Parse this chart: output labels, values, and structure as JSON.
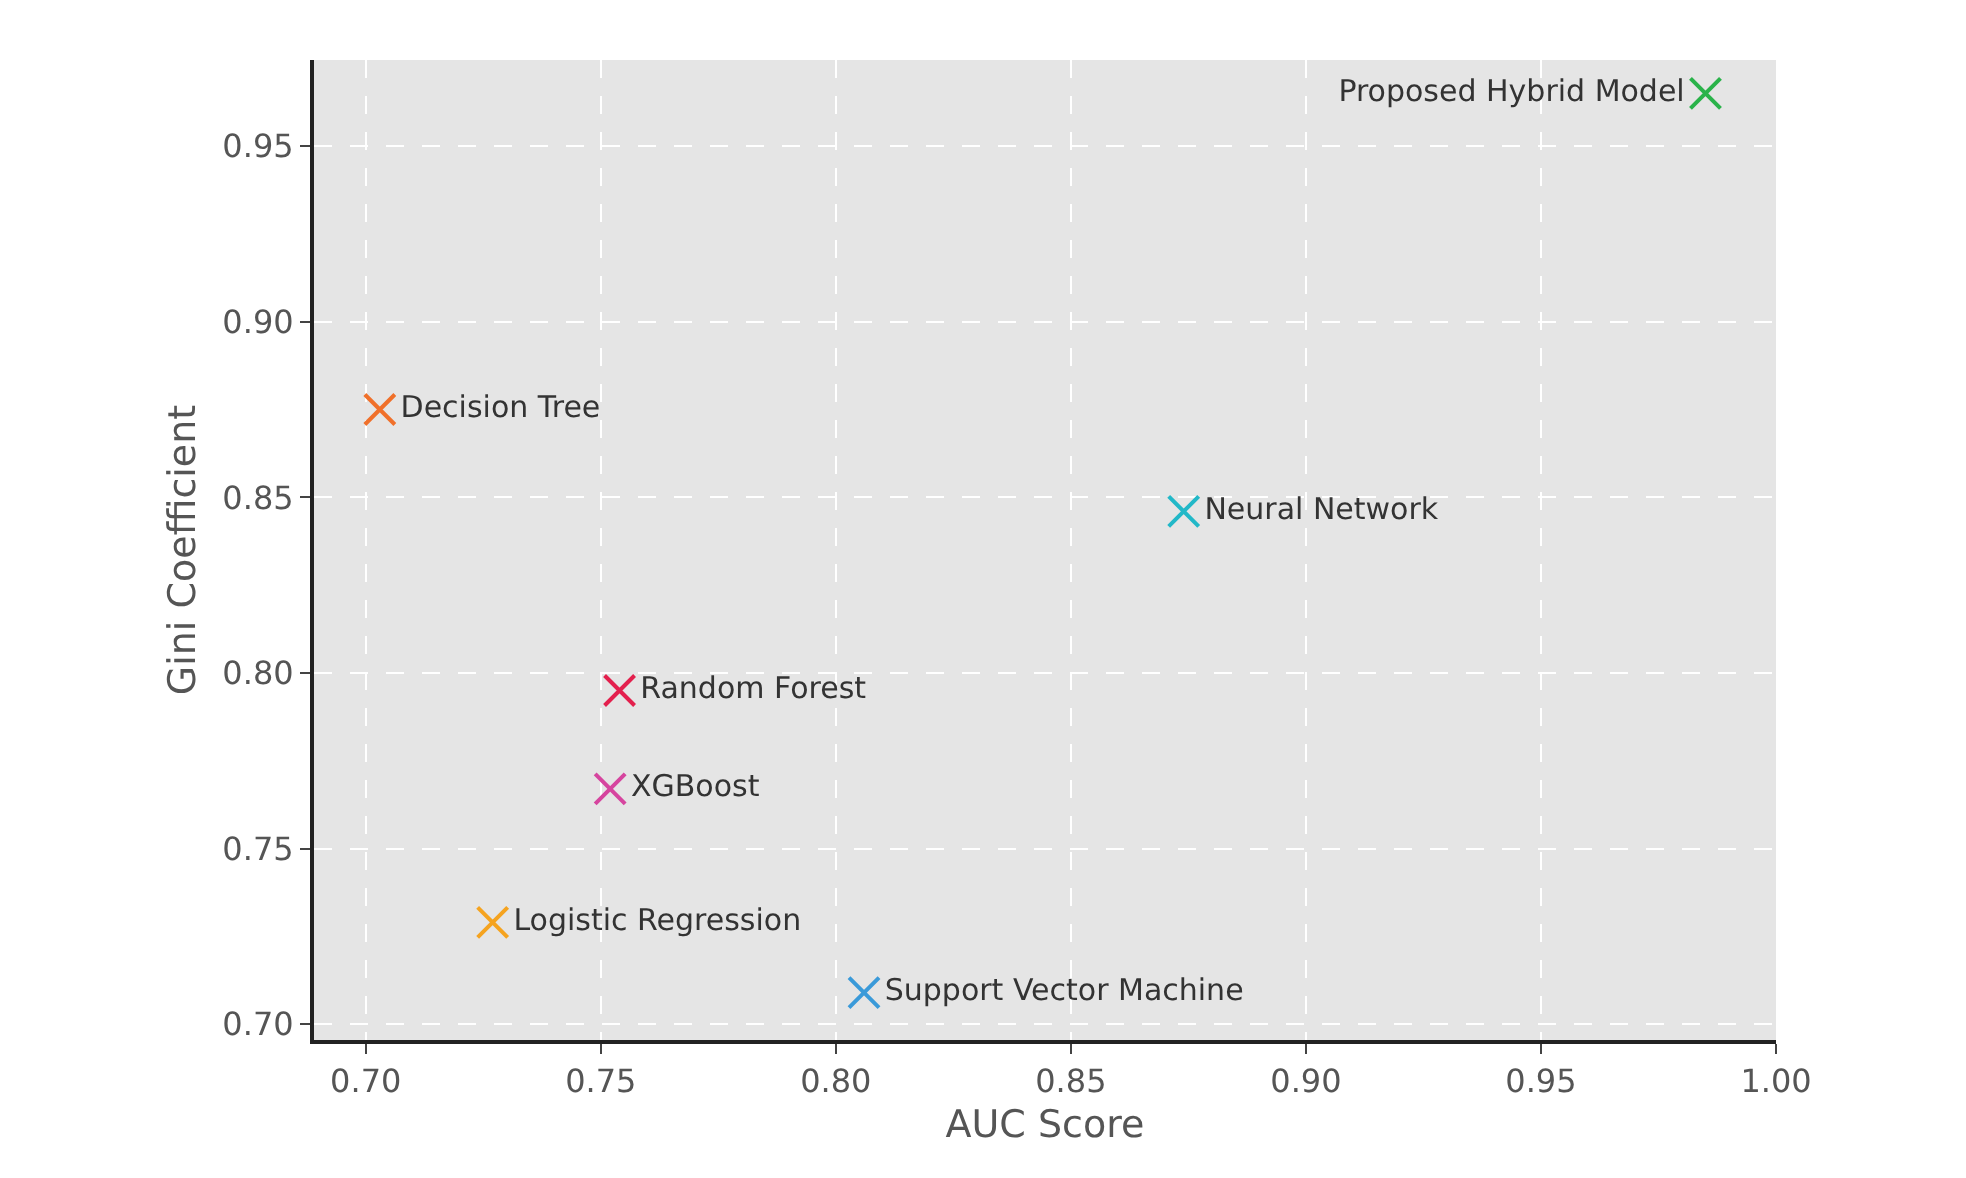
{
  "chart_data": {
    "type": "scatter",
    "xlabel": "AUC Score",
    "ylabel": "Gini Coefficient",
    "xlim": [
      0.689,
      1.0
    ],
    "xticks": [
      {
        "value": 0.7,
        "label": "0.70"
      },
      {
        "value": 0.75,
        "label": "0.75"
      },
      {
        "value": 0.8,
        "label": "0.80"
      },
      {
        "value": 0.85,
        "label": "0.85"
      },
      {
        "value": 0.9,
        "label": "0.90"
      },
      {
        "value": 0.95,
        "label": "0.95"
      },
      {
        "value": 1.0,
        "label": "1.00"
      }
    ],
    "ylim": [
      0.6955,
      0.9745
    ],
    "yticks": [
      {
        "value": 0.7,
        "label": "0.70"
      },
      {
        "value": 0.75,
        "label": "0.75"
      },
      {
        "value": 0.8,
        "label": "0.80"
      },
      {
        "value": 0.85,
        "label": "0.85"
      },
      {
        "value": 0.9,
        "label": "0.90"
      },
      {
        "value": 0.95,
        "label": "0.95"
      }
    ],
    "grid": true,
    "legend": false,
    "marker": "cross",
    "series": [
      {
        "name": "Logistic Regression",
        "color": "#f5a31f",
        "x": [
          0.727
        ],
        "values": [
          0.729
        ]
      },
      {
        "name": "Decision Tree",
        "color": "#f0702a",
        "x": [
          0.703
        ],
        "values": [
          0.875
        ]
      },
      {
        "name": "Random Forest",
        "color": "#e3204d",
        "x": [
          0.754
        ],
        "values": [
          0.795
        ]
      },
      {
        "name": "XGBoost",
        "color": "#d6459f",
        "x": [
          0.752
        ],
        "values": [
          0.767
        ]
      },
      {
        "name": "Support Vector Machine",
        "color": "#3a9ad9",
        "x": [
          0.806
        ],
        "values": [
          0.709
        ]
      },
      {
        "name": "Neural Network",
        "color": "#22b8c8",
        "x": [
          0.874
        ],
        "values": [
          0.846
        ]
      },
      {
        "name": "Proposed Hybrid Model",
        "color": "#2ab34a",
        "x": [
          0.985
        ],
        "values": [
          0.965
        ]
      }
    ]
  }
}
